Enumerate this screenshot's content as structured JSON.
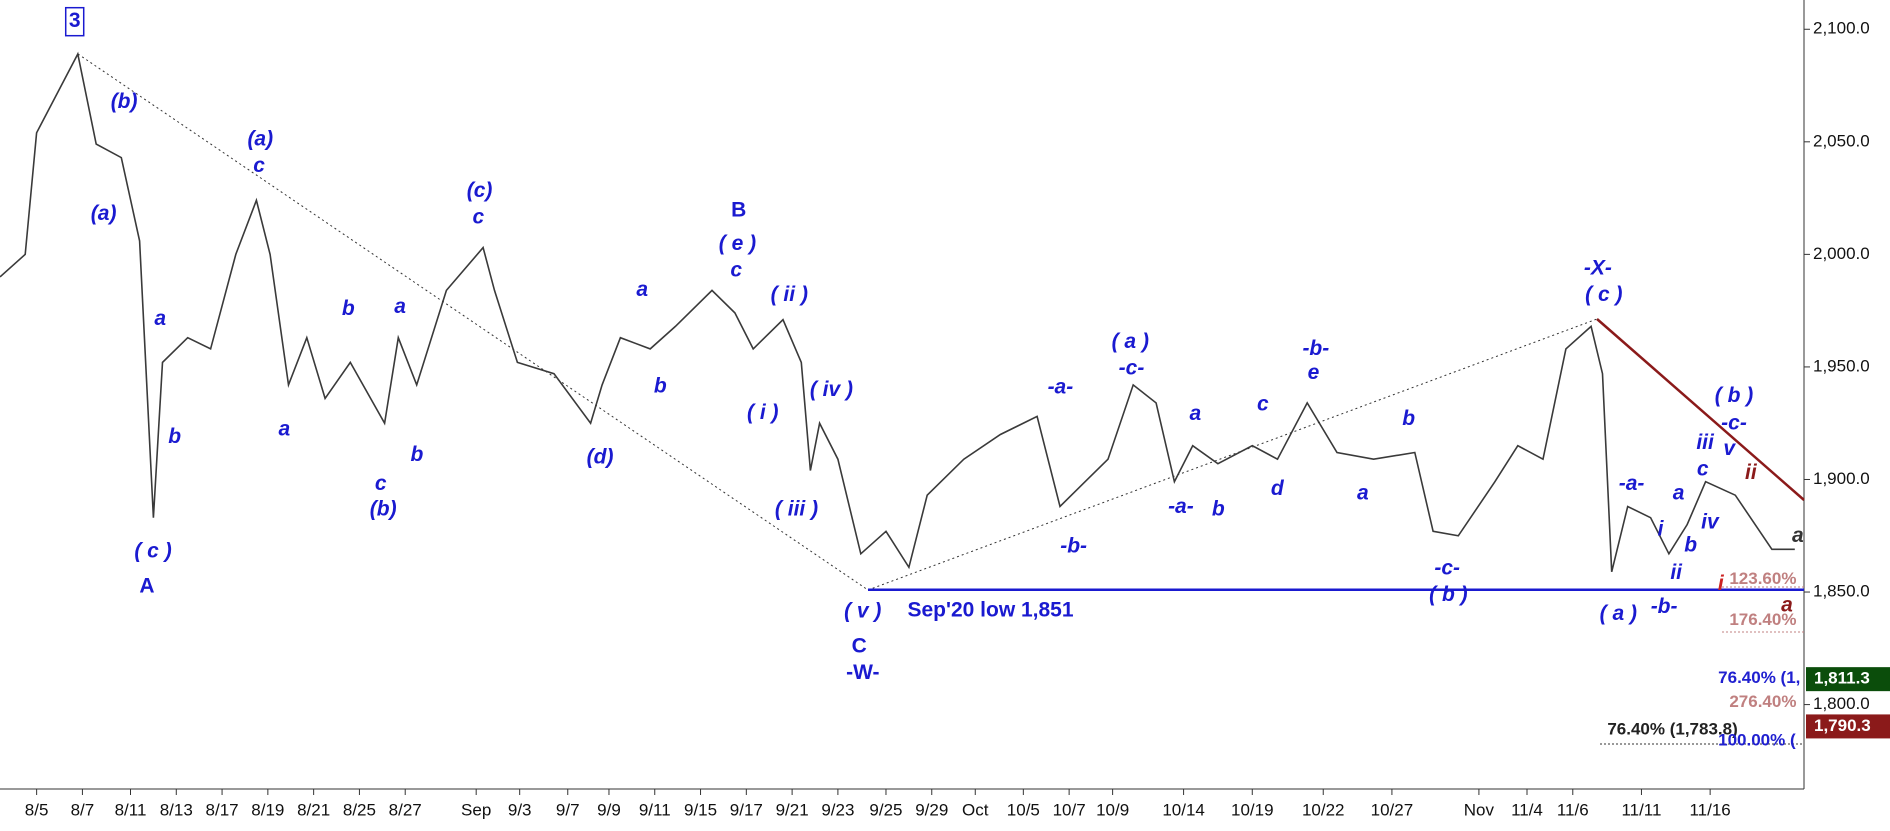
{
  "chart_data": {
    "type": "line",
    "x": [
      0,
      1.1,
      1.6,
      3.4,
      4.2,
      5.3,
      6.1,
      6.7,
      7.1,
      8.2,
      9.2,
      10.3,
      11.2,
      11.8,
      12.6,
      13.4,
      14.2,
      15.3,
      16.8,
      17.4,
      18.2,
      19.5,
      21.1,
      21.6,
      22.6,
      24.2,
      25.8,
      26.3,
      27.1,
      28.4,
      29.5,
      31.1,
      32.1,
      32.9,
      34.2,
      35,
      35.4,
      35.8,
      36.6,
      37.6,
      38.7,
      39.7,
      40.5,
      42.1,
      43.7,
      45.3,
      46.3,
      47.4,
      48.4,
      49.5,
      50.5,
      51.3,
      52.1,
      53.2,
      54.7,
      55.8,
      57.1,
      58.4,
      60,
      61.8,
      62.6,
      63.7,
      65.3,
      66.3,
      67.4,
      68.4,
      69.5,
      70,
      70.4,
      71.1,
      72.1,
      72.9,
      73.7,
      74.5,
      75.8,
      77.4,
      78.4
    ],
    "series": [
      {
        "color": "#3a3a3a",
        "values": [
          1990,
          2000,
          2054,
          2089,
          2049,
          2043,
          2006,
          1883,
          1952,
          1963,
          1958,
          2000,
          2024,
          2000,
          1942,
          1963,
          1936,
          1952,
          1925,
          1963,
          1942,
          1984,
          2003,
          1984,
          1952,
          1947,
          1925,
          1942,
          1963,
          1958,
          1968,
          1984,
          1974,
          1958,
          1971,
          1952,
          1904,
          1925,
          1909,
          1867,
          1877,
          1861,
          1893,
          1909,
          1920,
          1928,
          1888,
          1899,
          1909,
          1942,
          1934,
          1899,
          1915,
          1907,
          1915,
          1909,
          1934,
          1912,
          1909,
          1912,
          1877,
          1875,
          1899,
          1915,
          1909,
          1958,
          1968,
          1947,
          1859,
          1888,
          1883,
          1867,
          1880,
          1899,
          1893,
          1869,
          1869
        ]
      }
    ],
    "xlim": [
      0,
      78.8
    ],
    "xticks": [
      {
        "value": 1.6,
        "label": "8/5"
      },
      {
        "value": 3.6,
        "label": "8/7"
      },
      {
        "value": 5.7,
        "label": "8/11"
      },
      {
        "value": 7.7,
        "label": "8/13"
      },
      {
        "value": 9.7,
        "label": "8/17"
      },
      {
        "value": 11.7,
        "label": "8/19"
      },
      {
        "value": 13.7,
        "label": "8/21"
      },
      {
        "value": 15.7,
        "label": "8/25"
      },
      {
        "value": 17.7,
        "label": "8/27"
      },
      {
        "value": 20.8,
        "label": "Sep"
      },
      {
        "value": 22.7,
        "label": "9/3"
      },
      {
        "value": 24.8,
        "label": "9/7"
      },
      {
        "value": 26.6,
        "label": "9/9"
      },
      {
        "value": 28.6,
        "label": "9/11"
      },
      {
        "value": 30.6,
        "label": "9/15"
      },
      {
        "value": 32.6,
        "label": "9/17"
      },
      {
        "value": 34.6,
        "label": "9/21"
      },
      {
        "value": 36.6,
        "label": "9/23"
      },
      {
        "value": 38.7,
        "label": "9/25"
      },
      {
        "value": 40.7,
        "label": "9/29"
      },
      {
        "value": 42.6,
        "label": "Oct"
      },
      {
        "value": 44.7,
        "label": "10/5"
      },
      {
        "value": 46.7,
        "label": "10/7"
      },
      {
        "value": 48.6,
        "label": "10/9"
      },
      {
        "value": 51.7,
        "label": "10/14"
      },
      {
        "value": 54.7,
        "label": "10/19"
      },
      {
        "value": 57.8,
        "label": "10/22"
      },
      {
        "value": 60.8,
        "label": "10/27"
      },
      {
        "value": 64.6,
        "label": "Nov"
      },
      {
        "value": 66.7,
        "label": "11/4"
      },
      {
        "value": 68.7,
        "label": "11/6"
      },
      {
        "value": 71.7,
        "label": "11/11"
      },
      {
        "value": 74.7,
        "label": "11/16"
      }
    ],
    "ylim": [
      1762.5,
      2113
    ],
    "yticks": [
      {
        "value": 1800,
        "label": "1,800.0"
      },
      {
        "value": 1850,
        "label": "1,850.0"
      },
      {
        "value": 1900,
        "label": "1,900.0"
      },
      {
        "value": 1950,
        "label": "1,950.0"
      },
      {
        "value": 2000,
        "label": "2,000.0"
      },
      {
        "value": 2050,
        "label": "2,050.0"
      },
      {
        "value": 2100,
        "label": "2,100.0"
      }
    ],
    "support_level": 1851,
    "price_badges": [
      {
        "value": 1811.3,
        "label": "1,811.3",
        "color": "#0b4d0b"
      },
      {
        "value": 1790.3,
        "label": "1,790.3",
        "color": "#8b1a1a"
      }
    ],
    "annotations": [
      {
        "text": "3",
        "color": "#1a1ad0"
      },
      {
        "text": "(b)",
        "color": "#1a1ad0"
      },
      {
        "text": "(a)",
        "color": "#1a1ad0"
      },
      {
        "text": "a",
        "color": "#1a1ad0"
      },
      {
        "text": "b",
        "color": "#1a1ad0"
      },
      {
        "text": "( c )",
        "color": "#1a1ad0"
      },
      {
        "text": "A",
        "color": "#1a1ad0"
      },
      {
        "text": "(a)",
        "color": "#1a1ad0"
      },
      {
        "text": "c",
        "color": "#1a1ad0"
      },
      {
        "text": "b",
        "color": "#1a1ad0"
      },
      {
        "text": "a",
        "color": "#1a1ad0"
      },
      {
        "text": "a",
        "color": "#1a1ad0"
      },
      {
        "text": "c",
        "color": "#1a1ad0"
      },
      {
        "text": "(b)",
        "color": "#1a1ad0"
      },
      {
        "text": "b",
        "color": "#1a1ad0"
      },
      {
        "text": "(c)",
        "color": "#1a1ad0"
      },
      {
        "text": "c",
        "color": "#1a1ad0"
      },
      {
        "text": "(d)",
        "color": "#1a1ad0"
      },
      {
        "text": "a",
        "color": "#1a1ad0"
      },
      {
        "text": "b",
        "color": "#1a1ad0"
      },
      {
        "text": "B",
        "color": "#1a1ad0"
      },
      {
        "text": "( e )",
        "color": "#1a1ad0"
      },
      {
        "text": "c",
        "color": "#1a1ad0"
      },
      {
        "text": "( ii )",
        "color": "#1a1ad0"
      },
      {
        "text": "( i )",
        "color": "#1a1ad0"
      },
      {
        "text": "( iv )",
        "color": "#1a1ad0"
      },
      {
        "text": "( iii )",
        "color": "#1a1ad0"
      },
      {
        "text": "( v )",
        "color": "#1a1ad0"
      },
      {
        "text": "C",
        "color": "#1a1ad0"
      },
      {
        "text": "-W-",
        "color": "#1a1ad0"
      },
      {
        "text": "Sep'20 low 1,851",
        "color": "#1a1ad0"
      },
      {
        "text": "-a-",
        "color": "#1a1ad0"
      },
      {
        "text": "-b-",
        "color": "#1a1ad0"
      },
      {
        "text": "( a )",
        "color": "#1a1ad0"
      },
      {
        "text": "-c-",
        "color": "#1a1ad0"
      },
      {
        "text": "a",
        "color": "#1a1ad0"
      },
      {
        "text": "-a-",
        "color": "#1a1ad0"
      },
      {
        "text": "b",
        "color": "#1a1ad0"
      },
      {
        "text": "c",
        "color": "#1a1ad0"
      },
      {
        "text": "d",
        "color": "#1a1ad0"
      },
      {
        "text": "-b-",
        "color": "#1a1ad0"
      },
      {
        "text": "e",
        "color": "#1a1ad0"
      },
      {
        "text": "a",
        "color": "#1a1ad0"
      },
      {
        "text": "b",
        "color": "#1a1ad0"
      },
      {
        "text": "-c-",
        "color": "#1a1ad0"
      },
      {
        "text": "( b )",
        "color": "#1a1ad0"
      },
      {
        "text": "-X-",
        "color": "#1a1ad0"
      },
      {
        "text": "( c )",
        "color": "#1a1ad0"
      },
      {
        "text": "( a )",
        "color": "#1a1ad0"
      },
      {
        "text": "-a-",
        "color": "#1a1ad0"
      },
      {
        "text": "-b-",
        "color": "#1a1ad0"
      },
      {
        "text": "i",
        "color": "#1a1ad0"
      },
      {
        "text": "ii",
        "color": "#1a1ad0"
      },
      {
        "text": "a",
        "color": "#1a1ad0"
      },
      {
        "text": "b",
        "color": "#1a1ad0"
      },
      {
        "text": "iii",
        "color": "#1a1ad0"
      },
      {
        "text": "c",
        "color": "#1a1ad0"
      },
      {
        "text": "iv",
        "color": "#1a1ad0"
      },
      {
        "text": "( b )",
        "color": "#1a1ad0"
      },
      {
        "text": "-c-",
        "color": "#1a1ad0"
      },
      {
        "text": "v",
        "color": "#1a1ad0"
      },
      {
        "text": "ii",
        "color": "#8b1a1a"
      },
      {
        "text": "a",
        "color": "#333333"
      },
      {
        "text": "i",
        "color": "#cc2222"
      },
      {
        "text": "a",
        "color": "#8b1a1a"
      },
      {
        "text": "123.60%",
        "color": "#c08080"
      },
      {
        "text": "176.40%",
        "color": "#c08080"
      },
      {
        "text": "76.40% (1,",
        "color": "#2020d0"
      },
      {
        "text": "276.40%",
        "color": "#c08080"
      },
      {
        "text": "76.40% (1,783.8)",
        "color": "#222222"
      },
      {
        "text": "100.00% (",
        "color": "#2020d0"
      }
    ]
  }
}
